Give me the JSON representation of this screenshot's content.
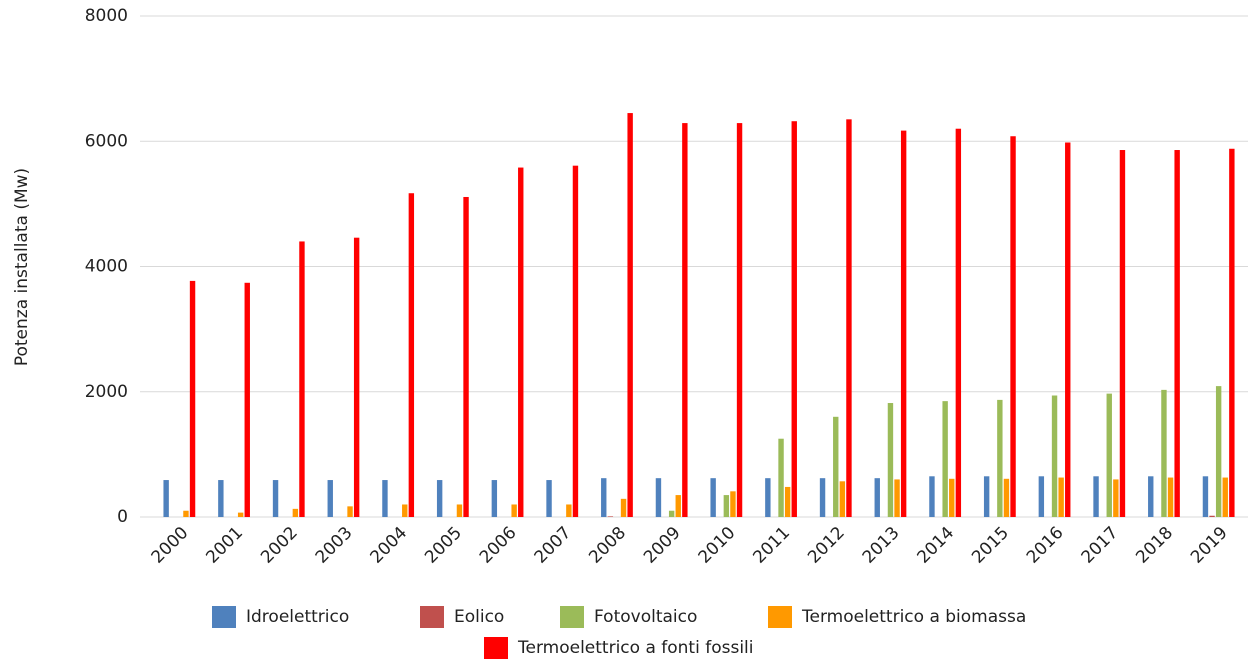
{
  "chart_data": {
    "type": "bar",
    "categories": [
      "2000",
      "2001",
      "2002",
      "2003",
      "2004",
      "2005",
      "2006",
      "2007",
      "2008",
      "2009",
      "2010",
      "2011",
      "2012",
      "2013",
      "2014",
      "2015",
      "2016",
      "2017",
      "2018",
      "2019"
    ],
    "y_label": "Potenza installata (Mw)",
    "ylim": [
      0,
      8000
    ],
    "yticks": [
      0,
      2000,
      4000,
      6000,
      8000
    ],
    "grid": true,
    "series": [
      {
        "name": "Idroelettrico",
        "color": "#4f81bd",
        "values": [
          590,
          590,
          590,
          590,
          590,
          590,
          590,
          590,
          620,
          620,
          620,
          620,
          620,
          620,
          650,
          650,
          650,
          650,
          650,
          650
        ]
      },
      {
        "name": "Eolico",
        "color": "#c0504d",
        "values": [
          0,
          0,
          0,
          0,
          0,
          0,
          0,
          0,
          10,
          0,
          0,
          0,
          0,
          0,
          0,
          0,
          0,
          0,
          0,
          20
        ]
      },
      {
        "name": "Fotovoltaico",
        "color": "#9bbb59",
        "values": [
          0,
          0,
          0,
          0,
          0,
          0,
          0,
          0,
          0,
          100,
          350,
          1250,
          1600,
          1820,
          1850,
          1870,
          1940,
          1970,
          2030,
          2090
        ]
      },
      {
        "name": "Termoelettrico a biomassa",
        "color": "#ff9900",
        "values": [
          100,
          70,
          130,
          170,
          200,
          200,
          200,
          200,
          290,
          350,
          410,
          480,
          570,
          600,
          610,
          610,
          630,
          600,
          630,
          630
        ]
      },
      {
        "name": "Termoelettrico a fonti fossili",
        "color": "#ff0000",
        "values": [
          3770,
          3740,
          4400,
          4460,
          5170,
          5110,
          5580,
          5610,
          6450,
          6290,
          6290,
          6320,
          6350,
          6170,
          6200,
          6080,
          5980,
          5860,
          5860,
          5880
        ]
      }
    ]
  }
}
